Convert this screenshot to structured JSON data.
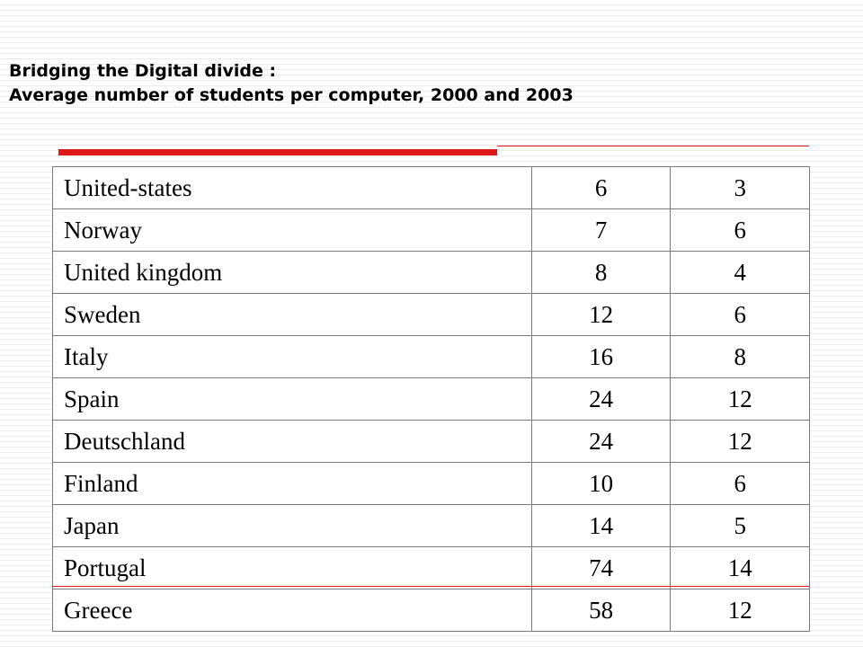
{
  "slide": {
    "title_line1": "Bridging the Digital divide :",
    "title_line2": "Average number of students per computer, 2000 and 2003"
  },
  "accent_color": "#dc1a1a",
  "table": {
    "rows": [
      {
        "country": "United-states",
        "v2000": "6",
        "v2003": "3"
      },
      {
        "country": "Norway",
        "v2000": "7",
        "v2003": "6"
      },
      {
        "country": "United kingdom",
        "v2000": "8",
        "v2003": "4"
      },
      {
        "country": "Sweden",
        "v2000": "12",
        "v2003": "6"
      },
      {
        "country": "Italy",
        "v2000": "16",
        "v2003": "8"
      },
      {
        "country": "Spain",
        "v2000": "24",
        "v2003": "12"
      },
      {
        "country": "Deutschland",
        "v2000": "24",
        "v2003": "12"
      },
      {
        "country": "Finland",
        "v2000": "10",
        "v2003": "6"
      },
      {
        "country": "Japan",
        "v2000": "14",
        "v2003": "5"
      },
      {
        "country": "Portugal",
        "v2000": "74",
        "v2003": "14"
      },
      {
        "country": "Greece",
        "v2000": "58",
        "v2003": "12"
      }
    ]
  }
}
